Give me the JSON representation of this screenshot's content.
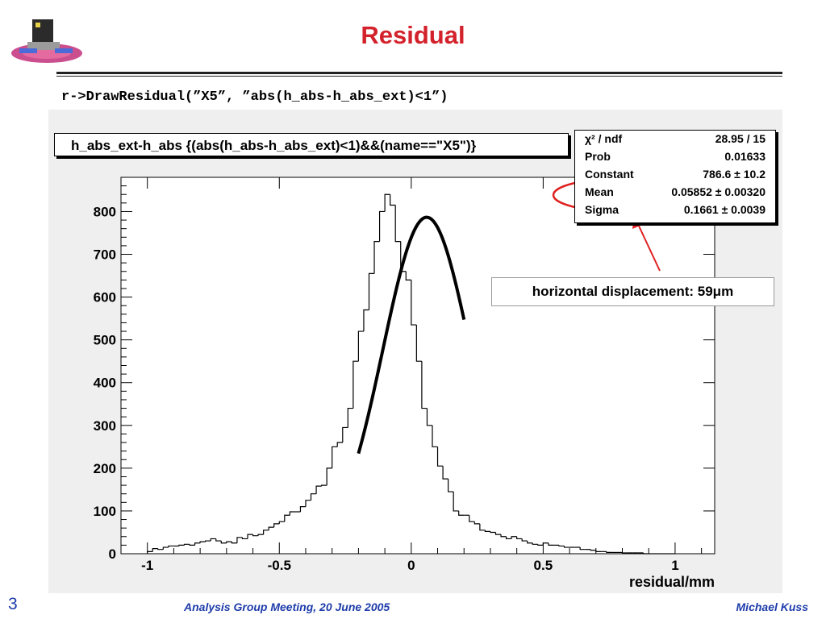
{
  "slide": {
    "title": "Residual",
    "code": "r->DrawResidual(”X5”, ”abs(h_abs-h_abs_ext)<1”)",
    "annotation": "horizontal displacement: 59μm",
    "page_number": "3",
    "footer_center": "Analysis Group Meeting, 20 June 2005",
    "footer_right": "Michael Kuss",
    "accent_color": "#d3222b",
    "footer_color": "#1e3caa"
  },
  "stats_box": {
    "rows": [
      {
        "key": "χ² / ndf",
        "value": "28.95 / 15"
      },
      {
        "key": "Prob",
        "value": "0.01633"
      },
      {
        "key": "Constant",
        "value": "786.6 ± 10.2"
      },
      {
        "key": "Mean",
        "value": "0.05852 ± 0.00320"
      },
      {
        "key": "Sigma",
        "value": "0.1661 ± 0.0039"
      }
    ]
  },
  "chart_data": {
    "type": "bar",
    "title": "h_abs_ext-h_abs {(abs(h_abs-h_abs_ext)<1)&&(name==\"X5\")}",
    "xlabel": "residual/mm",
    "ylabel": "",
    "xlim": [
      -1.1,
      1.15
    ],
    "ylim": [
      0,
      880
    ],
    "x_ticks": [
      -1,
      -0.5,
      0,
      0.5,
      1
    ],
    "x_tick_labels": [
      "-1",
      "-0.5",
      "0",
      "0.5",
      "1"
    ],
    "y_ticks": [
      0,
      100,
      200,
      300,
      400,
      500,
      600,
      700,
      800
    ],
    "y_tick_labels": [
      "0",
      "100",
      "200",
      "300",
      "400",
      "500",
      "600",
      "700",
      "800"
    ],
    "grid": false,
    "histogram": {
      "bin_start": -1.0,
      "bin_width": 0.02,
      "counts": [
        5,
        12,
        10,
        15,
        18,
        18,
        20,
        22,
        20,
        25,
        28,
        30,
        35,
        30,
        25,
        28,
        25,
        38,
        35,
        45,
        42,
        45,
        55,
        62,
        70,
        75,
        90,
        98,
        98,
        110,
        125,
        140,
        158,
        160,
        200,
        250,
        260,
        295,
        340,
        450,
        520,
        570,
        655,
        730,
        800,
        840,
        815,
        730,
        660,
        640,
        535,
        450,
        340,
        300,
        250,
        205,
        175,
        145,
        100,
        90,
        90,
        75,
        70,
        55,
        52,
        50,
        45,
        40,
        35,
        40,
        35,
        30,
        25,
        22,
        20,
        25,
        20,
        20,
        18,
        15,
        15,
        15,
        10,
        10,
        8,
        5,
        5,
        3,
        3,
        3,
        2,
        2,
        2,
        2,
        0,
        0,
        0,
        0,
        0,
        0
      ]
    },
    "fit": {
      "type": "gaussian",
      "constant": 786.6,
      "mean": 0.05852,
      "sigma": 0.1661,
      "range": [
        -0.2,
        0.2
      ]
    }
  }
}
